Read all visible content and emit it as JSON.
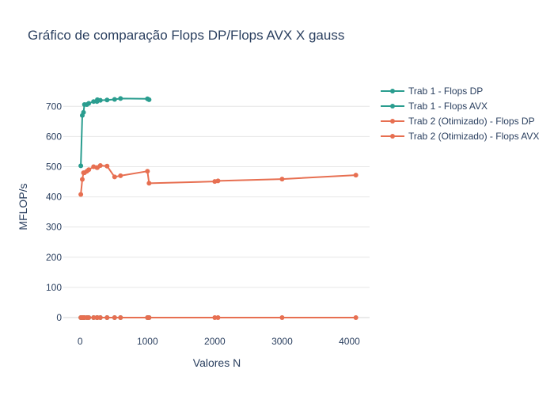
{
  "chart_data": {
    "type": "line",
    "title": "Gráfico de comparação Flops DP/Flops AVX X gauss",
    "xlabel": "Valores N",
    "ylabel": "MFLOP/s",
    "xlim": [
      -250,
      4300
    ],
    "ylim": [
      -50,
      790
    ],
    "xticks": [
      0,
      1000,
      2000,
      3000,
      4000
    ],
    "yticks": [
      0,
      100,
      200,
      300,
      400,
      500,
      600,
      700
    ],
    "grid": true,
    "legend_position": "top-right",
    "series": [
      {
        "name": "Trab 1 - Flops DP",
        "color": "#2a9d8f",
        "x": [
          10,
          32,
          50,
          64,
          100,
          128,
          200,
          250,
          256,
          300,
          400,
          512,
          600,
          1000,
          1024
        ],
        "y": [
          503,
          670,
          680,
          706,
          706,
          710,
          716,
          716,
          722,
          720,
          721,
          723,
          726,
          725,
          722
        ]
      },
      {
        "name": "Trab 1 - Flops AVX",
        "color": "#2a9d8f",
        "x": [
          10,
          32,
          50,
          64,
          100,
          128,
          200,
          250,
          256,
          300,
          400,
          512,
          600,
          1000,
          1024
        ],
        "y": [
          0,
          0,
          0,
          0,
          0,
          0,
          0,
          0,
          0,
          0,
          0,
          0,
          0,
          0,
          0
        ]
      },
      {
        "name": "Trab 2 (Otimizado) - Flops DP",
        "color": "#e76f51",
        "x": [
          10,
          32,
          50,
          64,
          100,
          128,
          200,
          250,
          256,
          300,
          400,
          512,
          600,
          1000,
          1024,
          2000,
          2048,
          3000,
          4096
        ],
        "y": [
          408,
          458,
          480,
          480,
          485,
          490,
          500,
          497,
          497,
          504,
          502,
          466,
          470,
          485,
          445,
          451,
          453,
          459,
          472
        ]
      },
      {
        "name": "Trab 2 (Otimizado) - Flops AVX",
        "color": "#e76f51",
        "x": [
          10,
          32,
          50,
          64,
          100,
          128,
          200,
          250,
          256,
          300,
          400,
          512,
          600,
          1000,
          1024,
          2000,
          2048,
          3000,
          4096
        ],
        "y": [
          0,
          0,
          0,
          0,
          0,
          0,
          0,
          0,
          0,
          0,
          0,
          0,
          0,
          0,
          0,
          0,
          0,
          0,
          0
        ]
      }
    ]
  }
}
